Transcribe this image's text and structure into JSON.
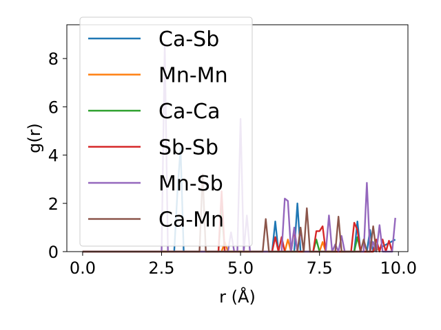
{
  "chart_data": {
    "type": "line",
    "title": "",
    "xlabel": "r (Å)",
    "ylabel": "g(r)",
    "xlim": [
      -0.5,
      10.3
    ],
    "ylim": [
      0,
      9.4
    ],
    "xticks": [
      {
        "value": 0.0,
        "label": "0.0"
      },
      {
        "value": 2.5,
        "label": "2.5"
      },
      {
        "value": 5.0,
        "label": "5.0"
      },
      {
        "value": 7.5,
        "label": "7.5"
      },
      {
        "value": 10.0,
        "label": "10.0"
      }
    ],
    "yticks": [
      {
        "value": 0,
        "label": "0"
      },
      {
        "value": 2,
        "label": "2"
      },
      {
        "value": 4,
        "label": "4"
      },
      {
        "value": 6,
        "label": "6"
      },
      {
        "value": 8,
        "label": "8"
      }
    ],
    "grid": false,
    "legend_position": "top-left",
    "series": [
      {
        "name": "Ca-Sb",
        "color": "#1f77b4",
        "x": [
          0,
          2.9,
          3.0,
          3.1,
          3.2,
          6.0,
          6.1,
          6.2,
          6.7,
          6.8,
          6.9,
          8.6,
          8.7,
          8.8,
          9.0,
          9.1,
          9.2,
          9.9
        ],
        "y": [
          0,
          0,
          2.4,
          4.3,
          0,
          0,
          1.25,
          0,
          0,
          2.0,
          0,
          0,
          1.25,
          0,
          0,
          0.9,
          0,
          0.5
        ]
      },
      {
        "name": "Mn-Mn",
        "color": "#ff7f0e",
        "x": [
          0,
          4.4,
          4.5,
          4.6,
          6.4,
          6.5,
          6.6,
          7.5,
          7.6,
          7.7,
          9.2,
          9.3,
          9.4
        ],
        "y": [
          0,
          0,
          0.4,
          0,
          0,
          0.5,
          0,
          0,
          0.4,
          0,
          0,
          0.3,
          0
        ]
      },
      {
        "name": "Ca-Ca",
        "color": "#2ca02c",
        "x": [
          0,
          4.3,
          4.4,
          4.5,
          7.3,
          7.4,
          7.5,
          8.6,
          8.7,
          8.8
        ],
        "y": [
          0,
          0,
          1.8,
          0,
          0,
          0.5,
          0,
          0,
          0.6,
          0
        ]
      },
      {
        "name": "Sb-Sb",
        "color": "#d62728",
        "x": [
          0,
          4.3,
          4.4,
          4.5,
          6.0,
          6.1,
          6.2,
          6.3,
          6.4,
          6.6,
          6.7,
          6.8,
          7.3,
          7.4,
          7.5,
          7.6,
          7.7,
          8.5,
          8.6,
          8.7,
          8.8,
          9.2,
          9.3,
          9.4,
          9.5,
          9.6,
          9.7,
          9.8
        ],
        "y": [
          0,
          0,
          2.5,
          0,
          0,
          0.6,
          0,
          0.6,
          0,
          0,
          0.9,
          0,
          0,
          0.85,
          0.85,
          1.05,
          0,
          0,
          1.2,
          0.9,
          0,
          0,
          0.5,
          0,
          0.5,
          0,
          0.45,
          0
        ]
      },
      {
        "name": "Mn-Sb",
        "color": "#9467bd",
        "x": [
          0,
          2.5,
          2.6,
          2.7,
          3.4,
          4.0,
          4.6,
          4.7,
          4.8,
          4.9,
          5.0,
          5.1,
          5.2,
          5.3,
          5.4,
          6.3,
          6.4,
          6.5,
          6.6,
          6.7,
          6.8,
          6.9,
          7.0,
          7.1,
          7.7,
          7.8,
          7.9,
          8.0,
          8.1,
          8.2,
          8.3,
          8.4,
          8.9,
          9.0,
          9.1,
          9.2,
          9.3,
          9.4,
          9.5,
          9.8,
          9.9
        ],
        "y": [
          0,
          0,
          8.6,
          0,
          0,
          0,
          0,
          0.8,
          0,
          0,
          5.5,
          0,
          1.5,
          0,
          0,
          0,
          2.2,
          2.1,
          0,
          1.0,
          0,
          0.9,
          0,
          0,
          0,
          1.5,
          0,
          0.3,
          0,
          0.65,
          0,
          0,
          0,
          2.85,
          0,
          0.4,
          0,
          1.1,
          0,
          0,
          1.4
        ]
      },
      {
        "name": "Ca-Mn",
        "color": "#8c564b",
        "x": [
          0,
          3.7,
          3.8,
          3.9,
          5.7,
          5.8,
          5.9,
          6.8,
          6.9,
          7.0,
          7.1,
          7.2,
          7.3,
          8.0,
          8.1,
          8.2,
          8.8,
          8.9,
          9.0,
          9.1,
          9.2,
          9.3
        ],
        "y": [
          0,
          0,
          3.2,
          0,
          0,
          1.35,
          0,
          0,
          1.0,
          0,
          1.8,
          0,
          0,
          0,
          1.45,
          0,
          0,
          0.5,
          0,
          0,
          1.05,
          0
        ]
      }
    ]
  }
}
